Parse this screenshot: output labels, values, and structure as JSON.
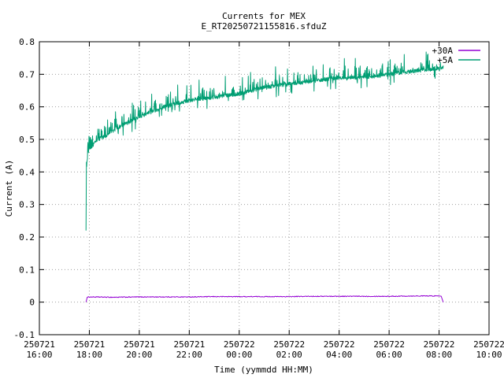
{
  "chart_data": {
    "type": "line",
    "title": "Currents for MEX",
    "subtitle": "E_RT20250721155816.sfduZ",
    "xlabel": "Time (yymmdd HH:MM)",
    "ylabel": "Current (A)",
    "xlim": [
      "250721 16:00",
      "250722 10:00"
    ],
    "ylim": [
      -0.1,
      0.8
    ],
    "grid": true,
    "legend_position": "top-right",
    "x_ticks": [
      {
        "hours": 16,
        "date": "250721",
        "time": "16:00"
      },
      {
        "hours": 18,
        "date": "250721",
        "time": "18:00"
      },
      {
        "hours": 20,
        "date": "250721",
        "time": "20:00"
      },
      {
        "hours": 22,
        "date": "250721",
        "time": "22:00"
      },
      {
        "hours": 24,
        "date": "250722",
        "time": "00:00"
      },
      {
        "hours": 26,
        "date": "250722",
        "time": "02:00"
      },
      {
        "hours": 28,
        "date": "250722",
        "time": "04:00"
      },
      {
        "hours": 30,
        "date": "250722",
        "time": "06:00"
      },
      {
        "hours": 32,
        "date": "250722",
        "time": "08:00"
      },
      {
        "hours": 34,
        "date": "250722",
        "time": "10:00"
      }
    ],
    "y_ticks": [
      -0.1,
      0,
      0.1,
      0.2,
      0.3,
      0.4,
      0.5,
      0.6,
      0.7,
      0.8
    ],
    "y_tick_labels": [
      "-0.1",
      "0",
      "0.1",
      "0.2",
      "0.3",
      "0.4",
      "0.5",
      "0.6",
      "0.7",
      "0.8"
    ],
    "series": [
      {
        "name": "+30A",
        "color": "#9400d3",
        "points": [
          [
            "250721 17:52",
            0.0
          ],
          [
            "250721 17:55",
            0.015
          ],
          [
            "250721 18:00",
            0.016
          ],
          [
            "250721 19:00",
            0.015
          ],
          [
            "250721 20:00",
            0.016
          ],
          [
            "250721 21:00",
            0.016
          ],
          [
            "250721 22:00",
            0.016
          ],
          [
            "250721 23:00",
            0.017
          ],
          [
            "250722 00:00",
            0.017
          ],
          [
            "250722 01:00",
            0.017
          ],
          [
            "250722 02:00",
            0.017
          ],
          [
            "250722 03:00",
            0.018
          ],
          [
            "250722 04:00",
            0.018
          ],
          [
            "250722 05:00",
            0.018
          ],
          [
            "250722 06:00",
            0.018
          ],
          [
            "250722 07:00",
            0.019
          ],
          [
            "250722 08:00",
            0.019
          ],
          [
            "250722 08:05",
            0.019
          ],
          [
            "250722 08:10",
            0.0
          ]
        ]
      },
      {
        "name": "+5A",
        "color": "#009e73",
        "points": [
          [
            "250721 17:52",
            0.22
          ],
          [
            "250721 17:53",
            0.41
          ],
          [
            "250721 17:56",
            0.45
          ],
          [
            "250721 18:00",
            0.47
          ],
          [
            "250721 18:20",
            0.5
          ],
          [
            "250721 18:40",
            0.51
          ],
          [
            "250721 19:00",
            0.53
          ],
          [
            "250721 19:30",
            0.55
          ],
          [
            "250721 20:00",
            0.57
          ],
          [
            "250721 21:00",
            0.6
          ],
          [
            "250721 22:00",
            0.62
          ],
          [
            "250721 23:00",
            0.63
          ],
          [
            "250722 00:00",
            0.64
          ],
          [
            "250722 01:00",
            0.66
          ],
          [
            "250722 02:00",
            0.67
          ],
          [
            "250722 03:00",
            0.68
          ],
          [
            "250722 04:00",
            0.69
          ],
          [
            "250722 05:00",
            0.69
          ],
          [
            "250722 06:00",
            0.7
          ],
          [
            "250722 07:00",
            0.71
          ],
          [
            "250722 08:00",
            0.72
          ],
          [
            "250722 08:10",
            0.72
          ]
        ]
      }
    ]
  }
}
